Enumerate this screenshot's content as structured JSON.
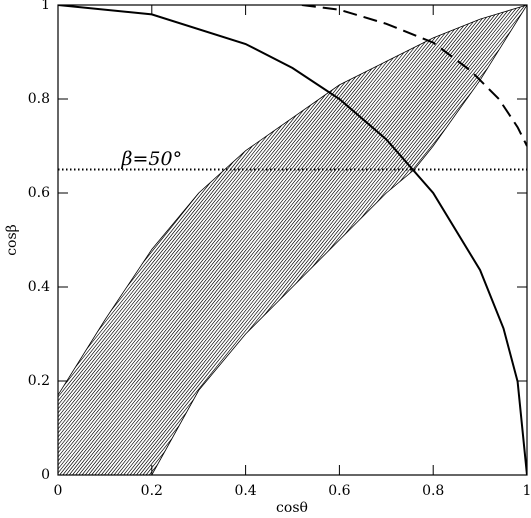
{
  "chart_data": {
    "type": "line",
    "x_label": "cosθ",
    "y_label": "cosβ",
    "xlim": [
      0,
      1
    ],
    "ylim": [
      0,
      1
    ],
    "xticks": [
      0,
      0.2,
      0.4,
      0.6,
      0.8,
      1
    ],
    "yticks": [
      0,
      0.2,
      0.4,
      0.6,
      0.8,
      1
    ],
    "series": [
      {
        "color": "#000000",
        "style": "solid",
        "x": [
          0,
          0.2,
          0.4,
          0.5,
          0.6,
          0.7,
          0.8,
          0.9,
          0.95,
          0.98,
          1
        ],
        "values": [
          1,
          0.98,
          0.917,
          0.866,
          0.8,
          0.714,
          0.6,
          0.436,
          0.312,
          0.199,
          0
        ]
      },
      {
        "color": "#000000",
        "style": "dashed",
        "x": [
          0.52,
          0.6,
          0.7,
          0.8,
          0.88,
          0.94,
          0.98,
          1
        ],
        "values": [
          1,
          0.99,
          0.96,
          0.92,
          0.86,
          0.8,
          0.74,
          0.7
        ]
      },
      {
        "color": "#000000",
        "style": "dotted",
        "x": [
          0,
          1
        ],
        "values": [
          0.65,
          0.65
        ]
      }
    ],
    "band": {
      "color": "#000000",
      "upper": {
        "x": [
          0,
          0.1,
          0.2,
          0.3,
          0.4,
          0.5,
          0.6,
          0.7,
          0.8,
          0.9,
          1
        ],
        "values": [
          0.17,
          0.33,
          0.48,
          0.6,
          0.69,
          0.76,
          0.83,
          0.88,
          0.93,
          0.97,
          1
        ]
      },
      "lower": {
        "x": [
          0,
          0.2,
          0.3,
          0.4,
          0.5,
          0.6,
          0.7,
          0.76,
          0.8,
          0.9,
          1
        ],
        "values": [
          0,
          0,
          0.18,
          0.3,
          0.4,
          0.5,
          0.6,
          0.65,
          0.7,
          0.84,
          1
        ]
      }
    },
    "annotation": {
      "text": "β=50°",
      "x": 0.2,
      "y": 0.67
    }
  }
}
